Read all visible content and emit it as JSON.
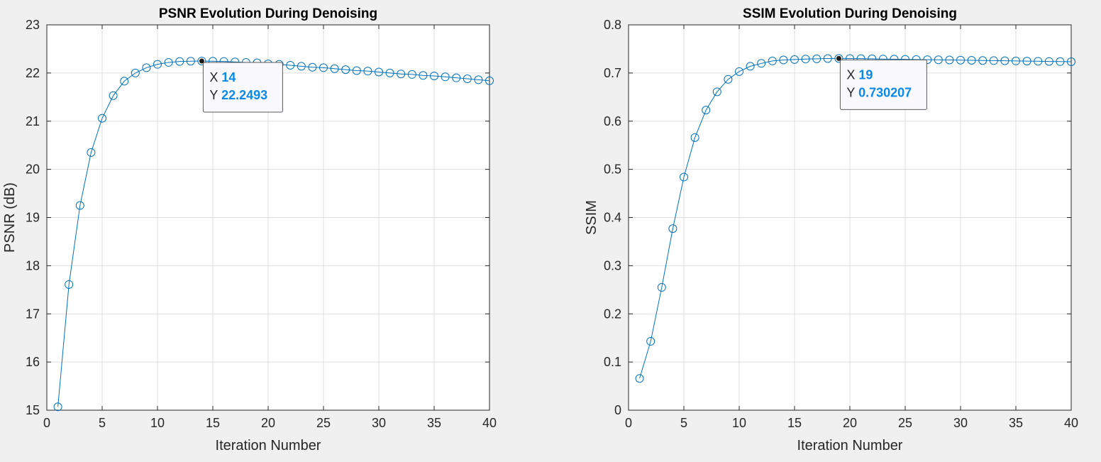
{
  "chart_data": [
    {
      "type": "line",
      "title": "PSNR Evolution During Denoising",
      "xlabel": "Iteration Number",
      "ylabel": "PSNR (dB)",
      "xlim": [
        0,
        40
      ],
      "ylim": [
        15,
        23
      ],
      "xticks": [
        0,
        5,
        10,
        15,
        20,
        25,
        30,
        35,
        40
      ],
      "yticks": [
        15,
        16,
        17,
        18,
        19,
        20,
        21,
        22,
        23
      ],
      "grid": true,
      "marker": "circle",
      "color": "#0072BD",
      "x": [
        1,
        2,
        3,
        4,
        5,
        6,
        7,
        8,
        9,
        10,
        11,
        12,
        13,
        14,
        15,
        16,
        17,
        18,
        19,
        20,
        21,
        22,
        23,
        24,
        25,
        26,
        27,
        28,
        29,
        30,
        31,
        32,
        33,
        34,
        35,
        36,
        37,
        38,
        39,
        40
      ],
      "y": [
        15.07,
        17.61,
        19.25,
        20.35,
        21.06,
        21.53,
        21.83,
        22.0,
        22.11,
        22.18,
        22.22,
        22.24,
        22.245,
        22.2493,
        22.245,
        22.24,
        22.23,
        22.22,
        22.21,
        22.19,
        22.18,
        22.16,
        22.14,
        22.12,
        22.11,
        22.09,
        22.07,
        22.05,
        22.04,
        22.02,
        22.0,
        21.98,
        21.97,
        21.95,
        21.94,
        21.92,
        21.9,
        21.88,
        21.86,
        21.84
      ],
      "datatip": {
        "x_key": "X",
        "x_value": "14",
        "y_key": "Y",
        "y_value": "22.2493",
        "at": [
          14,
          22.2493
        ]
      }
    },
    {
      "type": "line",
      "title": "SSIM Evolution During Denoising",
      "xlabel": "Iteration Number",
      "ylabel": "SSIM",
      "xlim": [
        0,
        40
      ],
      "ylim": [
        0,
        0.8
      ],
      "xticks": [
        0,
        5,
        10,
        15,
        20,
        25,
        30,
        35,
        40
      ],
      "yticks": [
        0,
        0.1,
        0.2,
        0.3,
        0.4,
        0.5,
        0.6,
        0.7,
        0.8
      ],
      "grid": true,
      "marker": "circle",
      "color": "#0072BD",
      "x": [
        1,
        2,
        3,
        4,
        5,
        6,
        7,
        8,
        9,
        10,
        11,
        12,
        13,
        14,
        15,
        16,
        17,
        18,
        19,
        20,
        21,
        22,
        23,
        24,
        25,
        26,
        27,
        28,
        29,
        30,
        31,
        32,
        33,
        34,
        35,
        36,
        37,
        38,
        39,
        40
      ],
      "y": [
        0.066,
        0.143,
        0.255,
        0.377,
        0.484,
        0.566,
        0.623,
        0.661,
        0.687,
        0.703,
        0.714,
        0.72,
        0.725,
        0.727,
        0.728,
        0.729,
        0.7295,
        0.73,
        0.730207,
        0.73,
        0.7298,
        0.7295,
        0.729,
        0.7287,
        0.7284,
        0.728,
        0.7277,
        0.7274,
        0.727,
        0.7267,
        0.7263,
        0.726,
        0.7257,
        0.7254,
        0.725,
        0.7247,
        0.7244,
        0.724,
        0.7237,
        0.7234
      ],
      "datatip": {
        "x_key": "X",
        "x_value": "19",
        "y_key": "Y",
        "y_value": "0.730207",
        "at": [
          19,
          0.730207
        ]
      }
    }
  ]
}
